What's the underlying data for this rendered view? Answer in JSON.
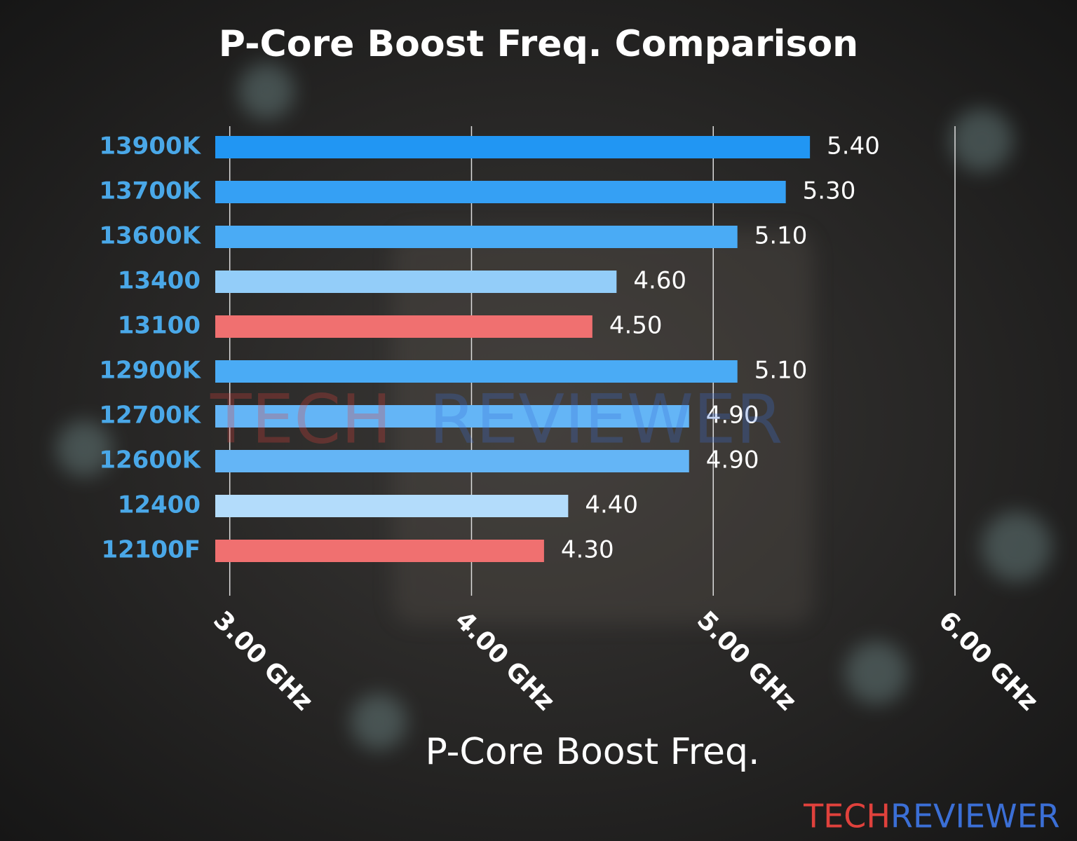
{
  "chart_data": {
    "type": "bar",
    "orientation": "horizontal",
    "title": "P-Core Boost Freq. Comparison",
    "xlabel": "P-Core Boost Freq.",
    "categories": [
      "13900K",
      "13700K",
      "13600K",
      "13400",
      "13100",
      "12900K",
      "12700K",
      "12600K",
      "12400",
      "12100F"
    ],
    "values": [
      5.4,
      5.3,
      5.1,
      4.6,
      4.5,
      5.1,
      4.9,
      4.9,
      4.4,
      4.3
    ],
    "value_labels": [
      "5.40",
      "5.30",
      "5.10",
      "4.60",
      "4.50",
      "5.10",
      "4.90",
      "4.90",
      "4.40",
      "4.30"
    ],
    "colors": [
      "#2196f3",
      "#35a0f4",
      "#4aabf5",
      "#93cdf9",
      "#f07070",
      "#4aabf5",
      "#64b5f6",
      "#64b5f6",
      "#b3dcfb",
      "#f07070"
    ],
    "xlim": [
      2.94,
      6.0
    ],
    "xticks": [
      {
        "value": 3,
        "label": "3.00 GHz"
      },
      {
        "value": 4,
        "label": "4.00 GHz"
      },
      {
        "value": 5,
        "label": "5.00 GHz"
      },
      {
        "value": 6,
        "label": "6.00 GHz"
      }
    ],
    "grid": true,
    "watermark": [
      "TECH",
      "REVIEWER"
    ]
  }
}
